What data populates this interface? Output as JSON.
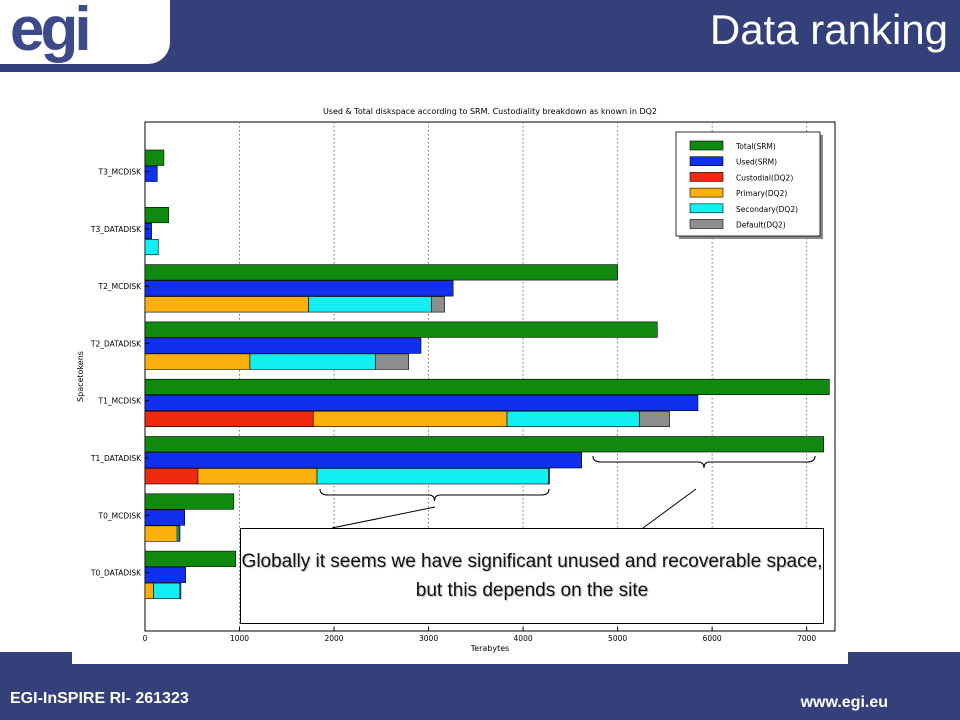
{
  "header": {
    "logo": "egi",
    "title": "Data ranking"
  },
  "footer": {
    "left": "EGI-InSPIRE RI- 261323",
    "right": "www.egi.eu"
  },
  "callout": {
    "text": "Globally it seems we have significant unused and recoverable space, but this depends on the site"
  },
  "chart_data": {
    "type": "bar",
    "orientation": "horizontal",
    "title": "Used & Total diskspace according to SRM. Custodiality breakdown as known in DQ2",
    "xlabel": "Terabytes",
    "ylabel": "Spacetokens",
    "xlim": [
      0,
      7300
    ],
    "xticks": [
      "0",
      "1000",
      "2000",
      "3000",
      "4000",
      "5000",
      "6000",
      "7000"
    ],
    "grid": "vertical dotted",
    "legend_position": "top-right",
    "legend": [
      {
        "name": "Total(SRM)",
        "color": "#0f8a0f"
      },
      {
        "name": "Used(SRM)",
        "color": "#1030ee"
      },
      {
        "name": "Custodial(DQ2)",
        "color": "#ee2a10"
      },
      {
        "name": "Primary(DQ2)",
        "color": "#fbb00c"
      },
      {
        "name": "Secondary(DQ2)",
        "color": "#12eef2"
      },
      {
        "name": "Default(DQ2)",
        "color": "#8e8e8e"
      }
    ],
    "categories": [
      "T3_MCDISK",
      "T3_DATADISK",
      "T2_MCDISK",
      "T2_DATADISK",
      "T1_MCDISK",
      "T1_DATADISK",
      "T0_MCDISK",
      "T0_DATADISK"
    ],
    "total": [
      200,
      250,
      5000,
      5420,
      7240,
      7180,
      940,
      960
    ],
    "used": [
      130,
      70,
      3260,
      2920,
      5850,
      4620,
      420,
      430
    ],
    "custodial": [
      0,
      0,
      0,
      0,
      1780,
      560,
      0,
      0
    ],
    "primary": [
      0,
      0,
      1730,
      1110,
      2050,
      1260,
      340,
      90
    ],
    "secondary": [
      0,
      140,
      1300,
      1330,
      1400,
      2450,
      20,
      280
    ],
    "default": [
      0,
      0,
      140,
      350,
      320,
      10,
      10,
      10
    ]
  }
}
